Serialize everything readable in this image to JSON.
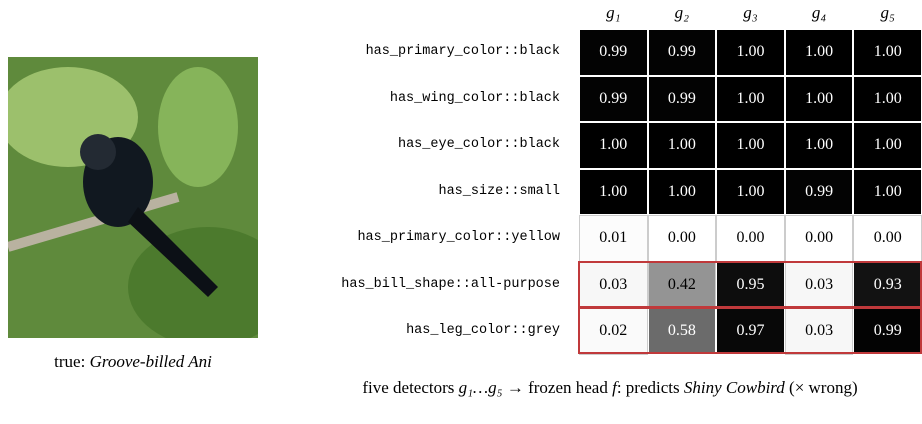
{
  "image_caption": {
    "prefix": "true: ",
    "label": "Groove-billed Ani"
  },
  "table": {
    "columns": [
      "g₁",
      "g₂",
      "g₃",
      "g₄",
      "g₅"
    ],
    "rows": [
      {
        "label": "has_primary_color::black",
        "values": [
          "0.99",
          "0.99",
          "1.00",
          "1.00",
          "1.00"
        ]
      },
      {
        "label": "has_wing_color::black",
        "values": [
          "0.99",
          "0.99",
          "1.00",
          "1.00",
          "1.00"
        ]
      },
      {
        "label": "has_eye_color::black",
        "values": [
          "1.00",
          "1.00",
          "1.00",
          "1.00",
          "1.00"
        ]
      },
      {
        "label": "has_size::small",
        "values": [
          "1.00",
          "1.00",
          "1.00",
          "0.99",
          "1.00"
        ]
      },
      {
        "label": "has_primary_color::yellow",
        "values": [
          "0.01",
          "0.00",
          "0.00",
          "0.00",
          "0.00"
        ]
      },
      {
        "label": "has_bill_shape::all-purpose",
        "values": [
          "0.03",
          "0.42",
          "0.95",
          "0.03",
          "0.93"
        ]
      },
      {
        "label": "has_leg_color::grey",
        "values": [
          "0.02",
          "0.58",
          "0.97",
          "0.03",
          "0.99"
        ]
      }
    ]
  },
  "caption": {
    "p1": "five detectors ",
    "p2": "g₁…g₅",
    "p3": " → frozen head ",
    "p4": "f",
    "p5": ": predicts ",
    "p6": "Shiny Cowbird",
    "p7": " (× wrong)"
  }
}
